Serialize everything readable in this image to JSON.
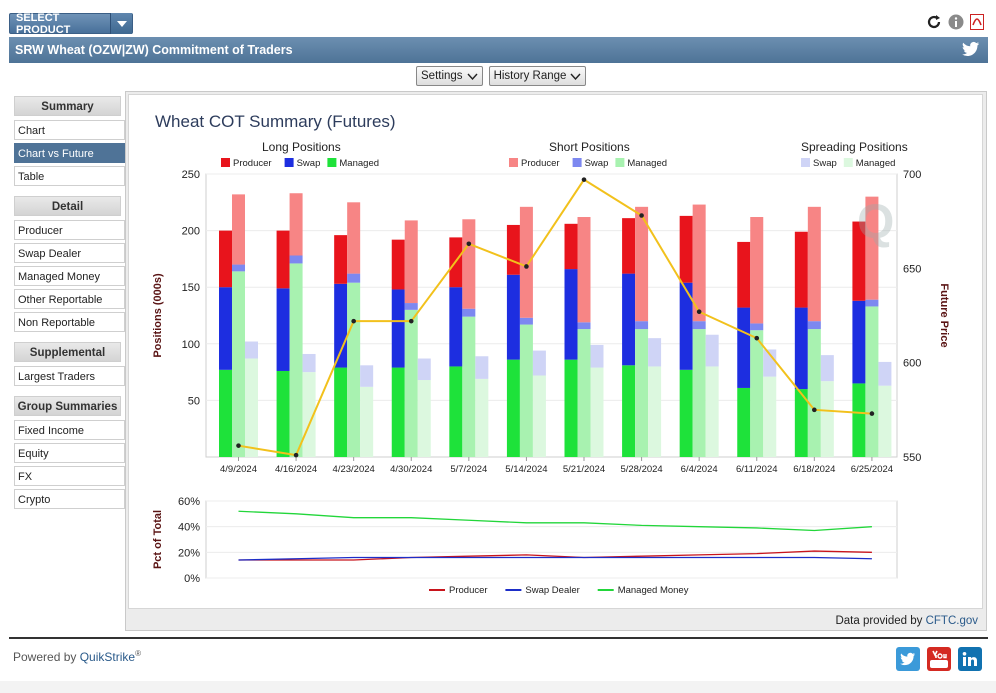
{
  "header": {
    "select_product": "SELECT PRODUCT",
    "title": "SRW Wheat (OZW|ZW) Commitment of Traders"
  },
  "toolbar": {
    "settings": "Settings",
    "history_range": "History Range"
  },
  "sidebar": {
    "sections": [
      {
        "heading": "Summary",
        "items": [
          "Chart",
          "Chart vs Future",
          "Table"
        ]
      },
      {
        "heading": "Detail",
        "items": [
          "Producer",
          "Swap Dealer",
          "Managed Money",
          "Other Reportable",
          "Non Reportable"
        ]
      },
      {
        "heading": "Supplemental",
        "items": [
          "Largest Traders"
        ]
      },
      {
        "heading": "Group Summaries",
        "items": [
          "Fixed Income",
          "Equity",
          "FX",
          "Crypto"
        ]
      }
    ],
    "active": "Chart vs Future"
  },
  "chart_data": [
    {
      "type": "bar",
      "title": "Wheat COT Summary (Futures)",
      "ylabel": "Positions (000s)",
      "y2label": "Future Price",
      "ylim": [
        0,
        250
      ],
      "y2lim": [
        550,
        700
      ],
      "yticks": [
        50,
        100,
        150,
        200,
        250
      ],
      "y2ticks": [
        550,
        600,
        650,
        700
      ],
      "categories": [
        "4/9/2024",
        "4/16/2024",
        "4/23/2024",
        "4/30/2024",
        "5/7/2024",
        "5/14/2024",
        "5/21/2024",
        "5/28/2024",
        "6/4/2024",
        "6/11/2024",
        "6/18/2024",
        "6/25/2024"
      ],
      "legend_groups": [
        {
          "title": "Long Positions",
          "entries": [
            {
              "name": "Producer",
              "color": "#e8141c"
            },
            {
              "name": "Swap",
              "color": "#1d2ee0"
            },
            {
              "name": "Managed",
              "color": "#1ee23a"
            }
          ]
        },
        {
          "title": "Short Positions",
          "entries": [
            {
              "name": "Producer",
              "color": "#f78585"
            },
            {
              "name": "Swap",
              "color": "#7d88f0"
            },
            {
              "name": "Managed",
              "color": "#a8f2b0"
            }
          ]
        },
        {
          "title": "Spreading Positions",
          "entries": [
            {
              "name": "Swap",
              "color": "#cfd4f6"
            },
            {
              "name": "Managed",
              "color": "#dcf8df"
            }
          ]
        }
      ],
      "long": {
        "managed": [
          77,
          76,
          79,
          79,
          80,
          86,
          86,
          81,
          77,
          61,
          60,
          65
        ],
        "swap": [
          73,
          73,
          74,
          69,
          70,
          75,
          80,
          81,
          77,
          71,
          72,
          73
        ],
        "producer": [
          50,
          51,
          43,
          44,
          44,
          44,
          40,
          49,
          59,
          58,
          67,
          70
        ]
      },
      "short": {
        "managed": [
          164,
          171,
          154,
          130,
          124,
          117,
          113,
          113,
          113,
          112,
          113,
          133
        ],
        "swap": [
          6,
          7,
          8,
          6,
          7,
          6,
          6,
          7,
          7,
          6,
          7,
          6
        ],
        "producer": [
          62,
          55,
          63,
          73,
          79,
          98,
          93,
          101,
          103,
          94,
          101,
          91
        ]
      },
      "spreading": {
        "managed": [
          87,
          75,
          62,
          68,
          69,
          72,
          79,
          80,
          80,
          71,
          67,
          63
        ],
        "swap": [
          15,
          16,
          19,
          19,
          20,
          22,
          20,
          25,
          28,
          24,
          23,
          21
        ]
      },
      "future_price": [
        556,
        551,
        622,
        622,
        663,
        651,
        697,
        678,
        627,
        613,
        575,
        573
      ]
    },
    {
      "type": "line",
      "ylabel": "Pct of Total",
      "ylim": [
        0,
        60
      ],
      "yticks": [
        "0%",
        "20%",
        "40%",
        "60%"
      ],
      "series": [
        {
          "name": "Producer",
          "color": "#c8141c",
          "values": [
            14,
            14,
            14,
            16,
            17,
            18,
            16,
            17,
            18,
            19,
            21,
            20
          ]
        },
        {
          "name": "Swap Dealer",
          "color": "#1d2ec8",
          "values": [
            14,
            15,
            16,
            16,
            16,
            16,
            16,
            16,
            16,
            16,
            16,
            15
          ]
        },
        {
          "name": "Managed Money",
          "color": "#22d63a",
          "values": [
            52,
            50,
            47,
            47,
            45,
            43,
            43,
            41,
            40,
            39,
            37,
            40
          ]
        }
      ]
    }
  ],
  "footer": {
    "data_provided_by": "Data provided by ",
    "data_link": "CFTC.gov",
    "powered_by": "Powered by ",
    "brand": "QuikStrike",
    "reg": "®"
  }
}
